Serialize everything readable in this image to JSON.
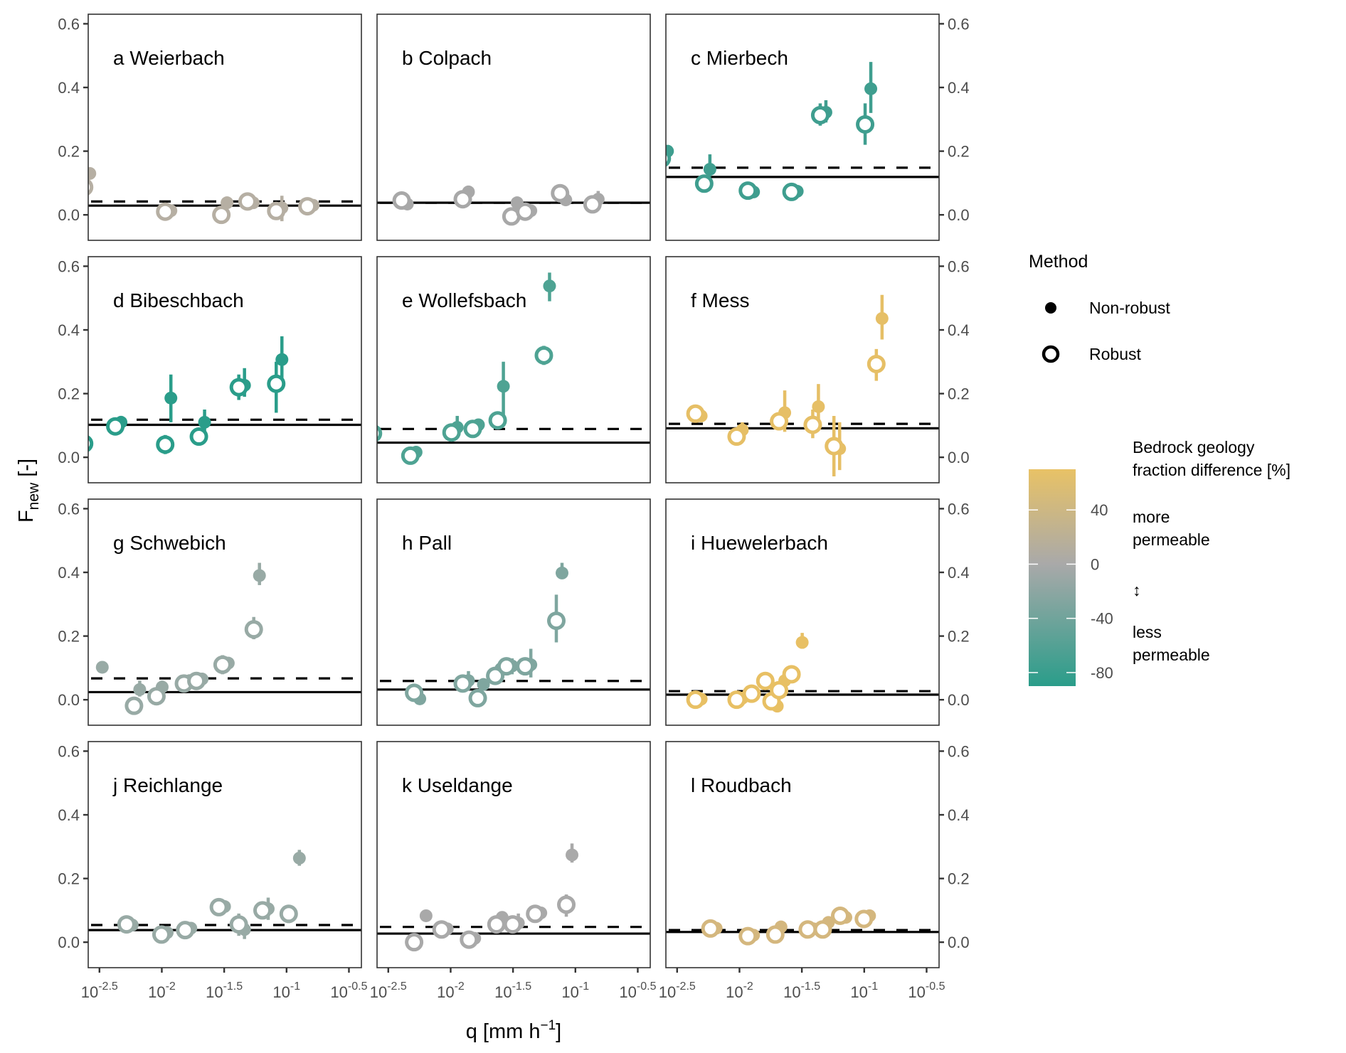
{
  "chart_data": {
    "type": "scatter",
    "layout": "facet grid 4 rows x 3 columns",
    "xlabel": "q [mm h^-1]",
    "xlabel_parts": {
      "base": "q [mm h",
      "sup": "−1",
      "close": "]"
    },
    "ylabel": "F_new [-]",
    "ylabel_parts": {
      "base": "F",
      "sub": "new",
      "suffix": " [-]"
    },
    "x_scale": "log10",
    "x_range_log10": [
      -2.59,
      -0.4
    ],
    "x_ticks_log10": [
      -2.5,
      -2,
      -1.5,
      -1,
      -0.5
    ],
    "x_tick_labels": [
      {
        "base": "10",
        "exp": "-2.5"
      },
      {
        "base": "10",
        "exp": "-2"
      },
      {
        "base": "10",
        "exp": "-1.5"
      },
      {
        "base": "10",
        "exp": "-1"
      },
      {
        "base": "10",
        "exp": "-0.5"
      }
    ],
    "y_range": [
      -0.08,
      0.63
    ],
    "y_ticks": [
      0.0,
      0.2,
      0.4,
      0.6
    ],
    "y_tick_labels": [
      "0.0",
      "0.2",
      "0.4",
      "0.6"
    ],
    "grid": false,
    "reference_lines": {
      "solid": "mean/robust reference",
      "dashed": "non-robust reference"
    },
    "legend": {
      "position": "right",
      "method_title": "Method",
      "method_items": [
        {
          "label": "Non-robust",
          "shape": "filled-circle"
        },
        {
          "label": "Robust",
          "shape": "open-circle"
        }
      ],
      "colorbar_title_lines": [
        "Bedrock geology",
        "fraction difference [%]"
      ],
      "colorbar_range": [
        -90,
        70
      ],
      "colorbar_ticks": [
        40,
        0,
        -40,
        -80
      ],
      "colorbar_tick_labels": [
        "40",
        "0",
        "-40",
        "-80"
      ],
      "colorbar_colors": {
        "high": "#e8c266",
        "mid": "#a9a9a9",
        "low": "#2a9d8a"
      },
      "colorbar_annotations": {
        "more": [
          "more",
          "permeable"
        ],
        "arrow": "↕",
        "less": [
          "less",
          "permeable"
        ]
      }
    },
    "panels": [
      {
        "id": "a",
        "title": "a Weierbach",
        "color": "#b6afa3",
        "solid": 0.029,
        "dashed": 0.042,
        "points": [
          {
            "logq": -2.6,
            "robust": 0.087,
            "nonrobust": 0.13
          },
          {
            "logq": -1.95,
            "robust": 0.01,
            "nonrobust": 0.013
          },
          {
            "logq": -1.5,
            "robust": 0.0,
            "nonrobust": 0.038
          },
          {
            "logq": -1.29,
            "robust": 0.042,
            "nonrobust": 0.038
          },
          {
            "logq": -1.06,
            "robust": 0.012,
            "nonrobust": 0.022,
            "nr_err": [
              -0.02,
              0.06
            ]
          },
          {
            "logq": -0.81,
            "robust": 0.027,
            "nonrobust": 0.03
          }
        ]
      },
      {
        "id": "b",
        "title": "b Colpach",
        "color": "#a8a8a8",
        "solid": 0.038,
        "dashed": 0.038,
        "points": [
          {
            "logq": -2.37,
            "robust": 0.045,
            "nonrobust": 0.034
          },
          {
            "logq": -1.88,
            "robust": 0.049,
            "nonrobust": 0.072
          },
          {
            "logq": -1.49,
            "robust": -0.005,
            "nonrobust": 0.038
          },
          {
            "logq": -1.38,
            "robust": 0.01,
            "nonrobust": 0.013
          },
          {
            "logq": -1.1,
            "robust": 0.068,
            "nonrobust": 0.047,
            "r_err": [
              0.04,
              0.09
            ]
          },
          {
            "logq": -0.84,
            "robust": 0.033,
            "nonrobust": 0.049,
            "nr_err": [
              0.03,
              0.075
            ]
          }
        ]
      },
      {
        "id": "c",
        "title": "c Mierbech",
        "color": "#3f9e8f",
        "solid": 0.119,
        "dashed": 0.148,
        "points": [
          {
            "logq": -2.6,
            "robust": 0.177,
            "nonrobust": 0.2
          },
          {
            "logq": -2.26,
            "robust": 0.098,
            "nonrobust": 0.143,
            "nr_err": [
              0.12,
              0.19
            ]
          },
          {
            "logq": -1.91,
            "robust": 0.076,
            "nonrobust": 0.072
          },
          {
            "logq": -1.56,
            "robust": 0.072,
            "nonrobust": 0.074
          },
          {
            "logq": -1.33,
            "robust": 0.313,
            "nonrobust": 0.322,
            "r_err": [
              0.28,
              0.35
            ],
            "nr_err": [
              0.29,
              0.36
            ]
          },
          {
            "logq": -0.97,
            "robust": 0.284,
            "nonrobust": 0.396,
            "r_err": [
              0.22,
              0.35
            ],
            "nr_err": [
              0.32,
              0.48
            ]
          }
        ]
      },
      {
        "id": "d",
        "title": "d Bibeschbach",
        "color": "#2a9d8a",
        "solid": 0.102,
        "dashed": 0.118,
        "points": [
          {
            "logq": -2.6,
            "robust": 0.043,
            "nonrobust": null
          },
          {
            "logq": -2.35,
            "robust": 0.097,
            "nonrobust": 0.11,
            "nr_err": [
              0.09,
              0.13
            ]
          },
          {
            "logq": -1.95,
            "robust": 0.04,
            "nonrobust": 0.186,
            "r_err": [
              0.01,
              0.07
            ],
            "nr_err": [
              0.11,
              0.26
            ]
          },
          {
            "logq": -1.68,
            "robust": 0.065,
            "nonrobust": 0.11,
            "nr_err": [
              0.08,
              0.15
            ]
          },
          {
            "logq": -1.36,
            "robust": 0.22,
            "nonrobust": 0.226,
            "r_err": [
              0.18,
              0.26
            ],
            "nr_err": [
              0.19,
              0.28
            ]
          },
          {
            "logq": -1.06,
            "robust": 0.231,
            "nonrobust": 0.307,
            "r_err": [
              0.14,
              0.3
            ],
            "nr_err": [
              0.22,
              0.38
            ]
          }
        ]
      },
      {
        "id": "e",
        "title": "e Wollefsbach",
        "color": "#4ea393",
        "solid": 0.046,
        "dashed": 0.089,
        "points": [
          {
            "logq": -2.6,
            "robust": 0.075,
            "nonrobust": null
          },
          {
            "logq": -2.3,
            "robust": 0.005,
            "nonrobust": 0.016
          },
          {
            "logq": -1.97,
            "robust": 0.078,
            "nonrobust": 0.094,
            "nr_err": [
              0.06,
              0.13
            ]
          },
          {
            "logq": -1.8,
            "robust": 0.089,
            "nonrobust": 0.102,
            "nr_err": [
              0.08,
              0.12
            ]
          },
          {
            "logq": -1.6,
            "robust": 0.116,
            "nonrobust": 0.223,
            "r_err": [
              0.09,
              0.14
            ],
            "nr_err": [
              0.1,
              0.3
            ]
          },
          {
            "logq": -1.23,
            "robust": 0.32,
            "nonrobust": 0.538,
            "r_err": [
              0.29,
              0.35
            ],
            "nr_err": [
              0.49,
              0.58
            ]
          }
        ]
      },
      {
        "id": "f",
        "title": "f Mess",
        "color": "#e6bf66",
        "solid": 0.091,
        "dashed": 0.105,
        "points": [
          {
            "logq": -2.33,
            "robust": 0.137,
            "nonrobust": 0.13,
            "nr_err": [
              0.11,
              0.15
            ]
          },
          {
            "logq": -2.0,
            "robust": 0.065,
            "nonrobust": 0.086,
            "nr_err": [
              0.06,
              0.11
            ]
          },
          {
            "logq": -1.66,
            "robust": 0.113,
            "nonrobust": 0.14,
            "r_err": [
              0.09,
              0.14
            ],
            "nr_err": [
              0.08,
              0.21
            ]
          },
          {
            "logq": -1.39,
            "robust": 0.102,
            "nonrobust": 0.159,
            "r_err": [
              0.06,
              0.15
            ],
            "nr_err": [
              0.11,
              0.23
            ]
          },
          {
            "logq": -1.22,
            "robust": 0.035,
            "nonrobust": 0.027,
            "r_err": [
              -0.06,
              0.13
            ],
            "nr_err": [
              -0.04,
              0.11
            ]
          },
          {
            "logq": -0.88,
            "robust": 0.293,
            "nonrobust": 0.436,
            "r_err": [
              0.24,
              0.34
            ],
            "nr_err": [
              0.37,
              0.51
            ]
          }
        ]
      },
      {
        "id": "g",
        "title": "g Schwebich",
        "color": "#98aaa5",
        "solid": 0.024,
        "dashed": 0.067,
        "points": [
          {
            "logq": -2.5,
            "robust": null,
            "nonrobust": 0.102
          },
          {
            "logq": -2.2,
            "robust": -0.019,
            "nonrobust": 0.032,
            "nr_err": [
              0.01,
              0.06
            ]
          },
          {
            "logq": -2.02,
            "robust": 0.011,
            "nonrobust": 0.04,
            "nr_err": [
              0.02,
              0.06
            ]
          },
          {
            "logq": -1.8,
            "robust": 0.051,
            "nonrobust": 0.06
          },
          {
            "logq": -1.7,
            "robust": 0.059,
            "nonrobust": 0.065
          },
          {
            "logq": -1.49,
            "robust": 0.11,
            "nonrobust": 0.115,
            "r_err": [
              0.08,
              0.14
            ]
          },
          {
            "logq": -1.24,
            "robust": 0.221,
            "nonrobust": 0.39,
            "r_err": [
              0.19,
              0.26
            ],
            "nr_err": [
              0.36,
              0.43
            ]
          }
        ]
      },
      {
        "id": "h",
        "title": "h Pall",
        "color": "#7fa69f",
        "solid": 0.032,
        "dashed": 0.059,
        "points": [
          {
            "logq": -2.27,
            "robust": 0.022,
            "nonrobust": 0.003
          },
          {
            "logq": -1.88,
            "robust": 0.051,
            "nonrobust": 0.06,
            "nr_err": [
              0.03,
              0.09
            ]
          },
          {
            "logq": -1.76,
            "robust": 0.005,
            "nonrobust": 0.048
          },
          {
            "logq": -1.62,
            "robust": 0.075,
            "nonrobust": 0.097
          },
          {
            "logq": -1.53,
            "robust": 0.105,
            "nonrobust": 0.106,
            "nr_err": [
              0.08,
              0.13
            ]
          },
          {
            "logq": -1.38,
            "robust": 0.105,
            "nonrobust": 0.11,
            "nr_err": [
              0.07,
              0.16
            ]
          },
          {
            "logq": -1.13,
            "robust": 0.248,
            "nonrobust": 0.398,
            "r_err": [
              0.18,
              0.33
            ],
            "nr_err": [
              0.38,
              0.43
            ]
          }
        ]
      },
      {
        "id": "i",
        "title": "i Huewelerbach",
        "color": "#e8c064",
        "solid": 0.016,
        "dashed": 0.027,
        "points": [
          {
            "logq": -2.33,
            "robust": 0.0,
            "nonrobust": 0.002
          },
          {
            "logq": -2.0,
            "robust": 0.0,
            "nonrobust": 0.005
          },
          {
            "logq": -1.88,
            "robust": 0.019,
            "nonrobust": null
          },
          {
            "logq": -1.77,
            "robust": 0.059,
            "nonrobust": null
          },
          {
            "logq": -1.72,
            "robust": -0.005,
            "nonrobust": -0.02
          },
          {
            "logq": -1.66,
            "robust": 0.03,
            "nonrobust": 0.06
          },
          {
            "logq": -1.56,
            "robust": 0.08,
            "nonrobust": null
          },
          {
            "logq": -1.52,
            "robust": null,
            "nonrobust": 0.18,
            "nr_err": [
              0.16,
              0.21
            ]
          }
        ]
      },
      {
        "id": "j",
        "title": "j Reichlange",
        "color": "#98aaa5",
        "solid": 0.038,
        "dashed": 0.054,
        "points": [
          {
            "logq": -2.26,
            "robust": 0.056,
            "nonrobust": 0.054
          },
          {
            "logq": -1.98,
            "robust": 0.024,
            "nonrobust": 0.03
          },
          {
            "logq": -1.79,
            "robust": 0.038,
            "nonrobust": 0.044
          },
          {
            "logq": -1.52,
            "robust": 0.11,
            "nonrobust": 0.112
          },
          {
            "logq": -1.36,
            "robust": 0.056,
            "nonrobust": 0.04,
            "r_err": [
              0.02,
              0.09
            ],
            "nr_err": [
              0.01,
              0.07
            ]
          },
          {
            "logq": -1.17,
            "robust": 0.1,
            "nonrobust": 0.105,
            "nr_err": [
              0.07,
              0.14
            ]
          },
          {
            "logq": -0.96,
            "robust": 0.089,
            "nonrobust": null,
            "r_err": [
              0.06,
              0.11
            ]
          },
          {
            "logq": -0.92,
            "robust": null,
            "nonrobust": 0.264,
            "nr_err": [
              0.24,
              0.29
            ]
          }
        ]
      },
      {
        "id": "k",
        "title": "k Useldange",
        "color": "#a9a9a9",
        "solid": 0.027,
        "dashed": 0.048,
        "points": [
          {
            "logq": -2.27,
            "robust": 0.0,
            "nonrobust": null
          },
          {
            "logq": -2.22,
            "robust": null,
            "nonrobust": 0.083
          },
          {
            "logq": -2.05,
            "robust": 0.04,
            "nonrobust": 0.042
          },
          {
            "logq": -1.83,
            "robust": 0.008,
            "nonrobust": 0.012
          },
          {
            "logq": -1.61,
            "robust": 0.056,
            "nonrobust": 0.078
          },
          {
            "logq": -1.48,
            "robust": 0.056,
            "nonrobust": 0.06,
            "nr_err": [
              0.04,
              0.09
            ]
          },
          {
            "logq": -1.3,
            "robust": 0.089,
            "nonrobust": 0.092
          },
          {
            "logq": -1.05,
            "robust": 0.118,
            "nonrobust": 0.274,
            "r_err": [
              0.08,
              0.15
            ],
            "nr_err": [
              0.25,
              0.31
            ]
          }
        ]
      },
      {
        "id": "l",
        "title": "l Roudbach",
        "color": "#d4b77e",
        "solid": 0.032,
        "dashed": 0.038,
        "points": [
          {
            "logq": -2.21,
            "robust": 0.043,
            "nonrobust": 0.044
          },
          {
            "logq": -1.91,
            "robust": 0.019,
            "nonrobust": 0.022
          },
          {
            "logq": -1.69,
            "robust": 0.024,
            "nonrobust": 0.048
          },
          {
            "logq": -1.43,
            "robust": 0.04,
            "nonrobust": 0.042
          },
          {
            "logq": -1.31,
            "robust": 0.04,
            "nonrobust": 0.062
          },
          {
            "logq": -1.17,
            "robust": 0.083,
            "nonrobust": 0.078
          },
          {
            "logq": -0.98,
            "robust": 0.073,
            "nonrobust": 0.083
          }
        ]
      }
    ]
  }
}
